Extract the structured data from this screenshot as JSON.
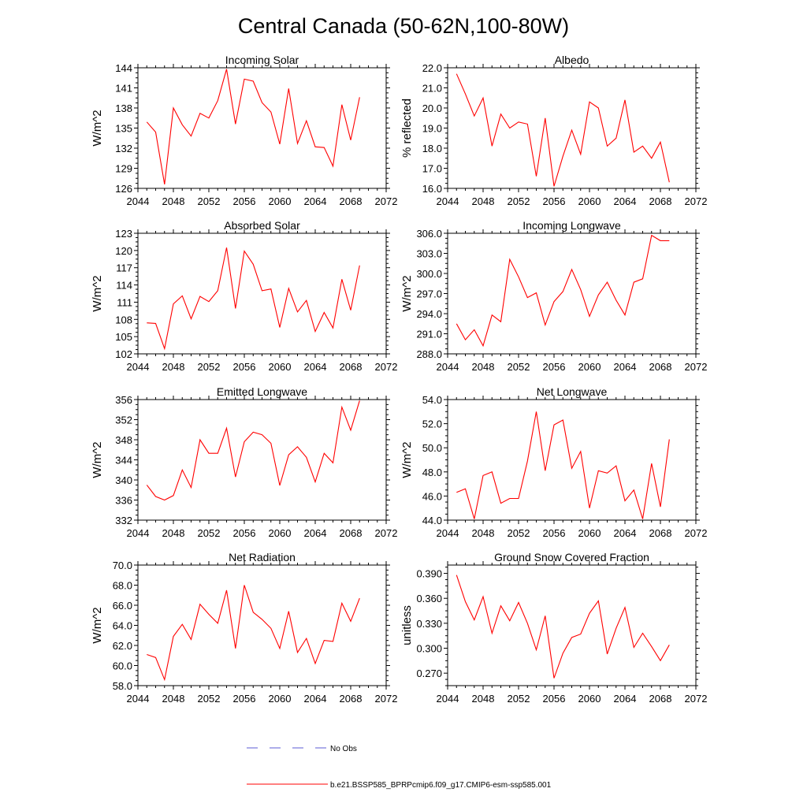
{
  "figure_title": "Central Canada (50-62N,100-80W)",
  "legend": {
    "obs_label": "No Obs",
    "model_label": "b.e21.BSSP585_BPRPcmip6.f09_g17.CMIP6-esm-ssp585.001",
    "obs_color": "#5b5bd6",
    "model_color": "#ff0000"
  },
  "chart_data": [
    {
      "type": "line",
      "title": "Incoming Solar",
      "ylabel": "W/m^2",
      "xlim": [
        2044,
        2072
      ],
      "ylim": [
        126,
        144
      ],
      "xticks": [
        2044,
        2048,
        2052,
        2056,
        2060,
        2064,
        2068,
        2072
      ],
      "xticklabels": [
        "2044",
        "2048",
        "2052",
        "2056",
        "2060",
        "2064",
        "2068",
        "2072"
      ],
      "yticks": [
        126,
        129,
        132,
        135,
        138,
        141,
        144
      ],
      "yticklabels": [
        "126",
        "129",
        "132",
        "135",
        "138",
        "141",
        "144"
      ],
      "x": [
        2045,
        2046,
        2047,
        2048,
        2049,
        2050,
        2051,
        2052,
        2053,
        2054,
        2055,
        2056,
        2057,
        2058,
        2059,
        2060,
        2061,
        2062,
        2063,
        2064,
        2065,
        2066,
        2067,
        2068,
        2069
      ],
      "series": [
        {
          "values": [
            135.9,
            134.4,
            126.6,
            138.0,
            135.5,
            133.8,
            137.2,
            136.5,
            139.1,
            143.8,
            135.6,
            142.3,
            142.0,
            138.8,
            137.4,
            132.6,
            140.9,
            132.7,
            136.1,
            132.2,
            132.1,
            129.3,
            138.5,
            133.2,
            139.6
          ]
        }
      ]
    },
    {
      "type": "line",
      "title": "Albedo",
      "ylabel": "% reflected",
      "xlim": [
        2044,
        2072
      ],
      "ylim": [
        16.0,
        22.0
      ],
      "xticks": [
        2044,
        2048,
        2052,
        2056,
        2060,
        2064,
        2068,
        2072
      ],
      "xticklabels": [
        "2044",
        "2048",
        "2052",
        "2056",
        "2060",
        "2064",
        "2068",
        "2072"
      ],
      "yticks": [
        16.0,
        17.0,
        18.0,
        19.0,
        20.0,
        21.0,
        22.0
      ],
      "yticklabels": [
        "16.0",
        "17.0",
        "18.0",
        "19.0",
        "20.0",
        "21.0",
        "22.0"
      ],
      "x": [
        2045,
        2046,
        2047,
        2048,
        2049,
        2050,
        2051,
        2052,
        2053,
        2054,
        2055,
        2056,
        2057,
        2058,
        2059,
        2060,
        2061,
        2062,
        2063,
        2064,
        2065,
        2066,
        2067,
        2068,
        2069
      ],
      "series": [
        {
          "values": [
            21.7,
            20.7,
            19.6,
            20.5,
            18.1,
            19.7,
            19.0,
            19.3,
            19.2,
            16.6,
            19.5,
            16.1,
            17.6,
            18.9,
            17.7,
            20.3,
            20.0,
            18.1,
            18.5,
            20.4,
            17.8,
            18.1,
            17.5,
            18.3,
            16.3
          ]
        }
      ]
    },
    {
      "type": "line",
      "title": "Absorbed Solar",
      "ylabel": "W/m^2",
      "xlim": [
        2044,
        2072
      ],
      "ylim": [
        102,
        123
      ],
      "xticks": [
        2044,
        2048,
        2052,
        2056,
        2060,
        2064,
        2068,
        2072
      ],
      "xticklabels": [
        "2044",
        "2048",
        "2052",
        "2056",
        "2060",
        "2064",
        "2068",
        "2072"
      ],
      "yticks": [
        102,
        105,
        108,
        111,
        114,
        117,
        120,
        123
      ],
      "yticklabels": [
        "102",
        "105",
        "108",
        "111",
        "114",
        "117",
        "120",
        "123"
      ],
      "x": [
        2045,
        2046,
        2047,
        2048,
        2049,
        2050,
        2051,
        2052,
        2053,
        2054,
        2055,
        2056,
        2057,
        2058,
        2059,
        2060,
        2061,
        2062,
        2063,
        2064,
        2065,
        2066,
        2067,
        2068,
        2069
      ],
      "series": [
        {
          "values": [
            107.4,
            107.3,
            102.9,
            110.7,
            112.1,
            108.1,
            112.0,
            111.1,
            113.0,
            120.5,
            109.9,
            119.9,
            117.6,
            113.0,
            113.3,
            106.6,
            113.4,
            109.3,
            111.3,
            105.9,
            109.2,
            106.5,
            115.0,
            109.6,
            117.4
          ]
        }
      ]
    },
    {
      "type": "line",
      "title": "Incoming Longwave",
      "ylabel": "W/m^2",
      "xlim": [
        2044,
        2072
      ],
      "ylim": [
        288.0,
        306.0
      ],
      "xticks": [
        2044,
        2048,
        2052,
        2056,
        2060,
        2064,
        2068,
        2072
      ],
      "xticklabels": [
        "2044",
        "2048",
        "2052",
        "2056",
        "2060",
        "2064",
        "2068",
        "2072"
      ],
      "yticks": [
        288.0,
        291.0,
        294.0,
        297.0,
        300.0,
        303.0,
        306.0
      ],
      "yticklabels": [
        "288.0",
        "291.0",
        "294.0",
        "297.0",
        "300.0",
        "303.0",
        "306.0"
      ],
      "x": [
        2045,
        2046,
        2047,
        2048,
        2049,
        2050,
        2051,
        2052,
        2053,
        2054,
        2055,
        2056,
        2057,
        2058,
        2059,
        2060,
        2061,
        2062,
        2063,
        2064,
        2065,
        2066,
        2067,
        2068,
        2069
      ],
      "series": [
        {
          "values": [
            292.5,
            290.1,
            291.6,
            289.2,
            293.8,
            292.8,
            302.1,
            299.5,
            296.4,
            297.1,
            292.3,
            295.8,
            297.3,
            300.6,
            297.6,
            293.6,
            296.8,
            298.7,
            296.0,
            293.8,
            298.7,
            299.2,
            305.7,
            304.9,
            304.9
          ]
        }
      ]
    },
    {
      "type": "line",
      "title": "Emitted Longwave",
      "ylabel": "W/m^2",
      "xlim": [
        2044,
        2072
      ],
      "ylim": [
        332,
        356
      ],
      "xticks": [
        2044,
        2048,
        2052,
        2056,
        2060,
        2064,
        2068,
        2072
      ],
      "xticklabels": [
        "2044",
        "2048",
        "2052",
        "2056",
        "2060",
        "2064",
        "2068",
        "2072"
      ],
      "yticks": [
        332,
        336,
        340,
        344,
        348,
        352,
        356
      ],
      "yticklabels": [
        "332",
        "336",
        "340",
        "344",
        "348",
        "352",
        "356"
      ],
      "x": [
        2045,
        2046,
        2047,
        2048,
        2049,
        2050,
        2051,
        2052,
        2053,
        2054,
        2055,
        2056,
        2057,
        2058,
        2059,
        2060,
        2061,
        2062,
        2063,
        2064,
        2065,
        2066,
        2067,
        2068,
        2069
      ],
      "series": [
        {
          "values": [
            339.0,
            336.7,
            336.0,
            336.9,
            342.0,
            338.5,
            348.0,
            345.3,
            345.3,
            350.3,
            340.6,
            347.6,
            349.5,
            349.0,
            347.3,
            338.9,
            345.0,
            346.6,
            344.5,
            339.6,
            345.3,
            343.4,
            354.5,
            349.9,
            355.8
          ]
        }
      ]
    },
    {
      "type": "line",
      "title": "Net Longwave",
      "ylabel": "W/m^2",
      "xlim": [
        2044,
        2072
      ],
      "ylim": [
        44.0,
        54.0
      ],
      "xticks": [
        2044,
        2048,
        2052,
        2056,
        2060,
        2064,
        2068,
        2072
      ],
      "xticklabels": [
        "2044",
        "2048",
        "2052",
        "2056",
        "2060",
        "2064",
        "2068",
        "2072"
      ],
      "yticks": [
        44.0,
        46.0,
        48.0,
        50.0,
        52.0,
        54.0
      ],
      "yticklabels": [
        "44.0",
        "46.0",
        "48.0",
        "50.0",
        "52.0",
        "54.0"
      ],
      "x": [
        2045,
        2046,
        2047,
        2048,
        2049,
        2050,
        2051,
        2052,
        2053,
        2054,
        2055,
        2056,
        2057,
        2058,
        2059,
        2060,
        2061,
        2062,
        2063,
        2064,
        2065,
        2066,
        2067,
        2068,
        2069
      ],
      "series": [
        {
          "values": [
            46.3,
            46.6,
            44.1,
            47.7,
            48.0,
            45.4,
            45.8,
            45.8,
            48.9,
            53.0,
            48.1,
            51.9,
            52.3,
            48.3,
            49.7,
            45.0,
            48.1,
            47.9,
            48.5,
            45.6,
            46.5,
            44.1,
            48.7,
            45.1,
            50.7
          ]
        }
      ]
    },
    {
      "type": "line",
      "title": "Net Radiation",
      "ylabel": "W/m^2",
      "xlim": [
        2044,
        2072
      ],
      "ylim": [
        58.0,
        70.0
      ],
      "xticks": [
        2044,
        2048,
        2052,
        2056,
        2060,
        2064,
        2068,
        2072
      ],
      "xticklabels": [
        "2044",
        "2048",
        "2052",
        "2056",
        "2060",
        "2064",
        "2068",
        "2072"
      ],
      "yticks": [
        58.0,
        60.0,
        62.0,
        64.0,
        66.0,
        68.0,
        70.0
      ],
      "yticklabels": [
        "58.0",
        "60.0",
        "62.0",
        "64.0",
        "66.0",
        "68.0",
        "70.0"
      ],
      "x": [
        2045,
        2046,
        2047,
        2048,
        2049,
        2050,
        2051,
        2052,
        2053,
        2054,
        2055,
        2056,
        2057,
        2058,
        2059,
        2060,
        2061,
        2062,
        2063,
        2064,
        2065,
        2066,
        2067,
        2068,
        2069
      ],
      "series": [
        {
          "values": [
            61.1,
            60.8,
            58.6,
            62.9,
            64.1,
            62.6,
            66.1,
            65.1,
            64.2,
            67.5,
            61.7,
            68.0,
            65.3,
            64.6,
            63.7,
            61.7,
            65.4,
            61.3,
            62.7,
            60.2,
            62.5,
            62.4,
            66.2,
            64.4,
            66.7
          ]
        }
      ]
    },
    {
      "type": "line",
      "title": "Ground Snow Covered Fraction",
      "ylabel": "unitless",
      "xlim": [
        2044,
        2072
      ],
      "ylim": [
        0.255,
        0.4
      ],
      "xticks": [
        2044,
        2048,
        2052,
        2056,
        2060,
        2064,
        2068,
        2072
      ],
      "xticklabels": [
        "2044",
        "2048",
        "2052",
        "2056",
        "2060",
        "2064",
        "2068",
        "2072"
      ],
      "yticks": [
        0.27,
        0.3,
        0.33,
        0.36,
        0.39
      ],
      "yticklabels": [
        "0.270",
        "0.300",
        "0.330",
        "0.360",
        "0.390"
      ],
      "x": [
        2045,
        2046,
        2047,
        2048,
        2049,
        2050,
        2051,
        2052,
        2053,
        2054,
        2055,
        2056,
        2057,
        2058,
        2059,
        2060,
        2061,
        2062,
        2063,
        2064,
        2065,
        2066,
        2067,
        2068,
        2069
      ],
      "series": [
        {
          "values": [
            0.388,
            0.356,
            0.334,
            0.362,
            0.318,
            0.351,
            0.333,
            0.355,
            0.33,
            0.298,
            0.339,
            0.264,
            0.294,
            0.313,
            0.317,
            0.342,
            0.357,
            0.293,
            0.324,
            0.349,
            0.301,
            0.318,
            0.302,
            0.285,
            0.304
          ]
        }
      ]
    }
  ]
}
